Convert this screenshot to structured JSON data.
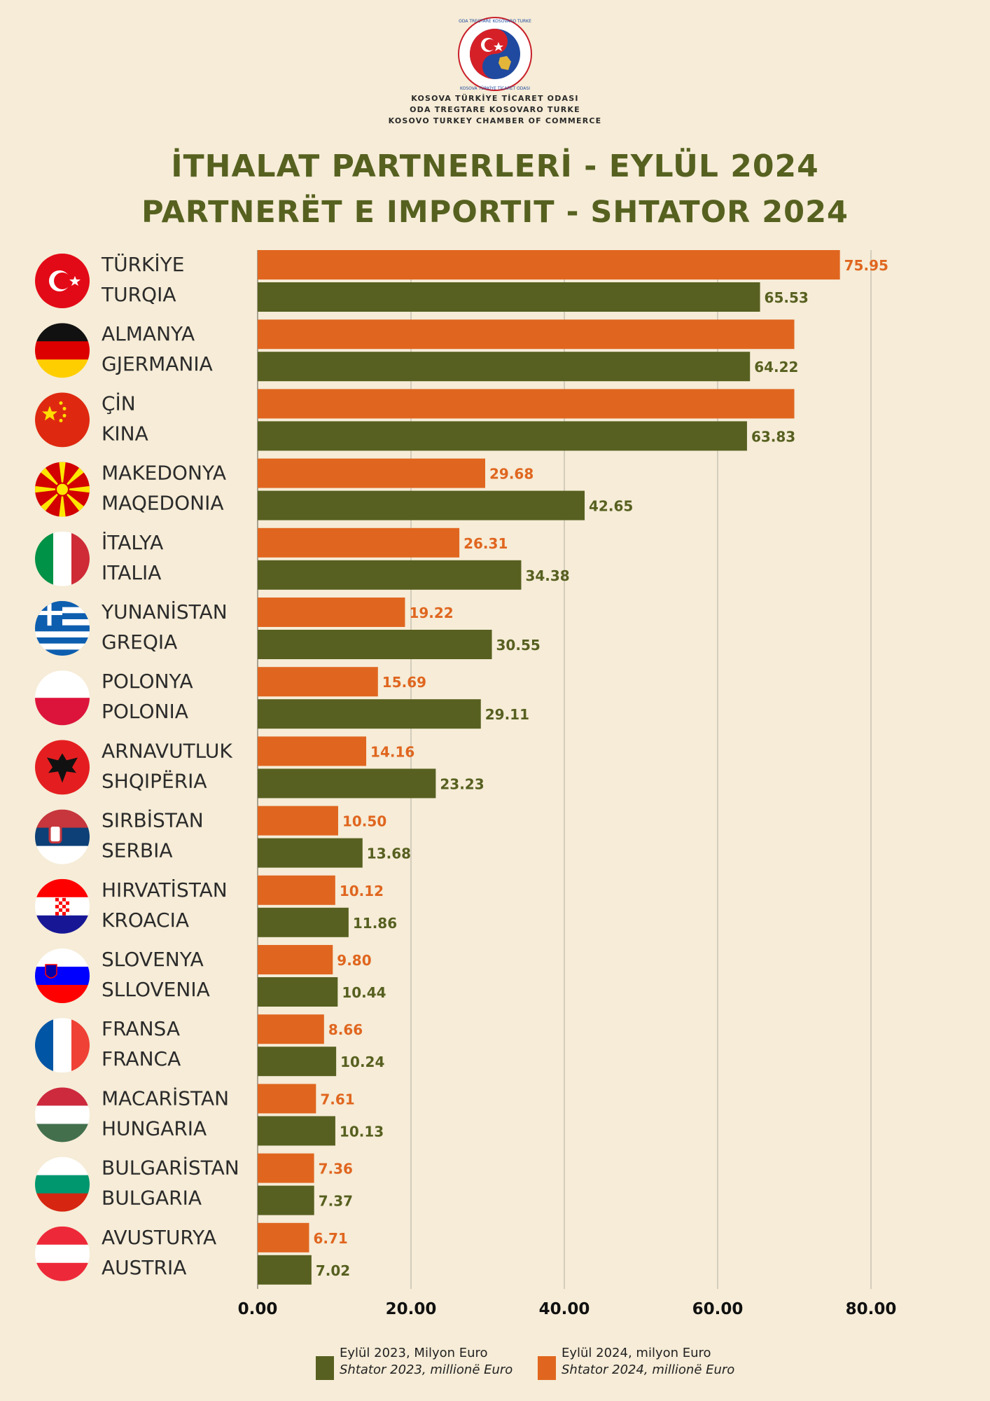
{
  "organization": {
    "lines": [
      "KOSOVA TÜRKİYE TİCARET ODASI",
      "ODA TREGTARE KOSOVARO TURKE",
      "KOSOVO TURKEY CHAMBER OF COMMERCE"
    ],
    "logo_ring_text_top": "ODA TREGTARE KOSOVARO TURKE",
    "logo_ring_text_bottom": "KOSOVA TÜRKİYE TİCARET ODASI"
  },
  "titles": {
    "line1": "İTHALAT PARTNERLERİ - EYLÜL 2024",
    "line2": "PARTNERËT E IMPORTIT - SHTATOR 2024"
  },
  "colors": {
    "orange": "#e0661f",
    "green": "#576020",
    "title": "#566120",
    "background": "#f6ecd7",
    "grid": "#bdb7aa"
  },
  "chart_data": {
    "type": "bar",
    "orientation": "horizontal",
    "categories": [
      [
        "TÜRKİYE",
        "TURQIA"
      ],
      [
        "ALMANYA",
        "GJERMANIA"
      ],
      [
        "ÇİN",
        "KINA"
      ],
      [
        "MAKEDONYA",
        "MAQEDONIA"
      ],
      [
        "İTALYA",
        "ITALIA"
      ],
      [
        "YUNANİSTAN",
        "GREQIA"
      ],
      [
        "POLONYA",
        "POLONIA"
      ],
      [
        "ARNAVUTLUK",
        "SHQIPËRIA"
      ],
      [
        "SIRBİSTAN",
        "SERBIA"
      ],
      [
        "HIRVATİSTAN",
        "KROACIA"
      ],
      [
        "SLOVENYA",
        "SLLOVENIA"
      ],
      [
        "FRANSA",
        "FRANCA"
      ],
      [
        "MACARİSTAN",
        "HUNGARIA"
      ],
      [
        "BULGARİSTAN",
        "BULGARIA"
      ],
      [
        "AVUSTURYA",
        "AUSTRIA"
      ]
    ],
    "flags": [
      "turkey-flag-icon",
      "germany-flag-icon",
      "china-flag-icon",
      "north-macedonia-flag-icon",
      "italy-flag-icon",
      "greece-flag-icon",
      "poland-flag-icon",
      "albania-flag-icon",
      "serbia-flag-icon",
      "croatia-flag-icon",
      "slovenia-flag-icon",
      "france-flag-icon",
      "hungary-flag-icon",
      "bulgaria-flag-icon",
      "austria-flag-icon"
    ],
    "series": [
      {
        "name": "Eylül  2024, milyon Euro / Shtator 2024, millionë Euro",
        "color": "#e0661f",
        "values": [
          75.95,
          70.0,
          70.0,
          29.68,
          26.31,
          19.22,
          15.69,
          14.16,
          10.5,
          10.12,
          9.8,
          8.66,
          7.61,
          7.36,
          6.71
        ],
        "labels": [
          "75.95",
          "",
          "",
          "29.68",
          "26.31",
          "19.22",
          "15.69",
          "14.16",
          "10.50",
          "10.12",
          "9.80",
          "8.66",
          "7.61",
          "7.36",
          "6.71"
        ]
      },
      {
        "name": "Eylül 2023, Milyon Euro / Shtator 2023, millionë Euro",
        "color": "#576020",
        "values": [
          65.53,
          64.22,
          63.83,
          42.65,
          34.38,
          30.55,
          29.11,
          23.23,
          13.68,
          11.86,
          10.44,
          10.24,
          10.13,
          7.37,
          7.02
        ],
        "labels": [
          "65.53",
          "64.22",
          "63.83",
          "42.65",
          "34.38",
          "30.55",
          "29.11",
          "23.23",
          "13.68",
          "11.86",
          "10.44",
          "10.24",
          "10.13",
          "7.37",
          "7.02"
        ]
      }
    ],
    "xlim": [
      0,
      80
    ],
    "xticks": [
      "0.00",
      "20.00",
      "40.00",
      "60.00",
      "80.00"
    ],
    "xtick_values": [
      0,
      20,
      40,
      60,
      80
    ],
    "grid": true,
    "legend_position": "bottom"
  },
  "legend": [
    {
      "line1": "Eylül 2023, Milyon Euro",
      "line2": "Shtator 2023, millionë Euro",
      "color": "#576020"
    },
    {
      "line1": "Eylül  2024, milyon Euro",
      "line2": "Shtator 2024, millionë Euro",
      "color": "#e0661f"
    }
  ]
}
